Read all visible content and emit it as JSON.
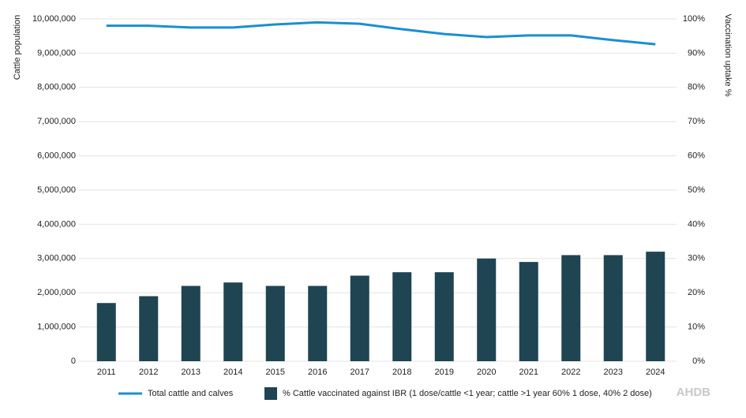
{
  "chart_data": {
    "type": "bar-line",
    "y_label": "Cattle population",
    "y2_label": "Vaccination uptake %",
    "categories": [
      "2011",
      "2012",
      "2013",
      "2014",
      "2015",
      "2016",
      "2017",
      "2018",
      "2019",
      "2020",
      "2021",
      "2022",
      "2023",
      "2024"
    ],
    "series": [
      {
        "name": "Total cattle and calves",
        "type": "line",
        "color": "#1a8fd1",
        "axis": "y",
        "values": [
          9800000,
          9800000,
          9750000,
          9750000,
          9840000,
          9900000,
          9860000,
          9700000,
          9560000,
          9470000,
          9520000,
          9520000,
          9380000,
          9260000
        ]
      },
      {
        "name": "% Cattle vaccinated against IBR (1 dose/cattle <1 year; cattle >1 year 60% 1 dose, 40% 2 dose)",
        "type": "bar",
        "color": "#1f4452",
        "axis": "y2",
        "values": [
          17,
          19,
          22,
          23,
          22,
          22,
          25,
          26,
          26,
          30,
          29,
          31,
          31,
          32
        ]
      }
    ],
    "ylim": [
      0,
      10000000
    ],
    "yticks": [
      0,
      {
        "value": 1000000,
        "label": "1,000,000"
      },
      {
        "value": 2000000,
        "label": "2,000,000"
      },
      {
        "value": 3000000,
        "label": "3,000,000"
      },
      {
        "value": 4000000,
        "label": "4,000,000"
      },
      {
        "value": 5000000,
        "label": "5,000,000"
      },
      {
        "value": 6000000,
        "label": "6,000,000"
      },
      {
        "value": 7000000,
        "label": "7,000,000"
      },
      {
        "value": 8000000,
        "label": "8,000,000"
      },
      {
        "value": 9000000,
        "label": "9,000,000"
      },
      {
        "value": 10000000,
        "label": "10,000,000"
      }
    ],
    "y2lim": [
      0,
      100
    ],
    "y2ticks": [
      {
        "value": 0,
        "label": "0%"
      },
      {
        "value": 10,
        "label": "10%"
      },
      {
        "value": 20,
        "label": "20%"
      },
      {
        "value": 30,
        "label": "30%"
      },
      {
        "value": 40,
        "label": "40%"
      },
      {
        "value": 50,
        "label": "50%"
      },
      {
        "value": 60,
        "label": "60%"
      },
      {
        "value": 70,
        "label": "70%"
      },
      {
        "value": 80,
        "label": "80%"
      },
      {
        "value": 90,
        "label": "90%"
      },
      {
        "value": 100,
        "label": "100%"
      }
    ],
    "grid": true,
    "legend": "bottom",
    "logo": "AHDB"
  }
}
